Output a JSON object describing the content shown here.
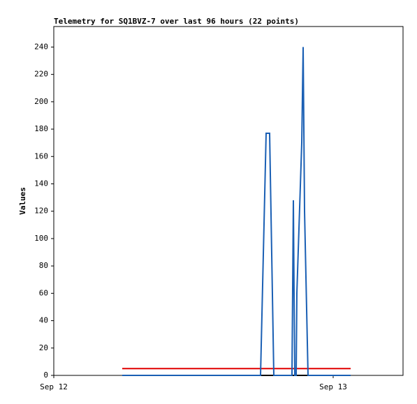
{
  "chart_data": {
    "type": "line",
    "title": "Telemetry for SQ1BVZ-7 over last 96 hours (22 points)",
    "y_label": "Values",
    "x": [
      5.88,
      7.38,
      10.38,
      13.38,
      16.38,
      17.76,
      18.24,
      18.54,
      18.9,
      20.46,
      20.58,
      20.64,
      20.7,
      20.82,
      20.88,
      21.3,
      21.42,
      21.54,
      21.84,
      22.38,
      24.18,
      25.5
    ],
    "series": [
      {
        "color": "#000000",
        "values": [
          0,
          0,
          0,
          0,
          0,
          0,
          0,
          0,
          0,
          0,
          0,
          0,
          0,
          0,
          0,
          0,
          0,
          0,
          0,
          0,
          0,
          0
        ]
      },
      {
        "color": "#e00000",
        "values": [
          5,
          5,
          5,
          5,
          5,
          5,
          5,
          5,
          5,
          5,
          5,
          5,
          5,
          5,
          5,
          5,
          5,
          5,
          5,
          5,
          5,
          5
        ]
      },
      {
        "color": "#1a5fb4",
        "values": [
          0,
          0,
          0,
          0,
          0,
          0,
          177,
          177,
          0,
          0,
          128,
          60,
          0,
          0,
          60,
          170,
          240,
          120,
          0,
          0,
          0,
          0
        ]
      }
    ],
    "xlim": [
      0,
      30
    ],
    "xticks": [
      {
        "value": 0,
        "label": "Sep 12"
      },
      {
        "value": 24,
        "label": "Sep 13"
      }
    ],
    "ylim": [
      0,
      255
    ],
    "yticks": [
      0,
      20,
      40,
      60,
      80,
      100,
      120,
      140,
      160,
      180,
      200,
      220,
      240
    ],
    "grid": false
  }
}
